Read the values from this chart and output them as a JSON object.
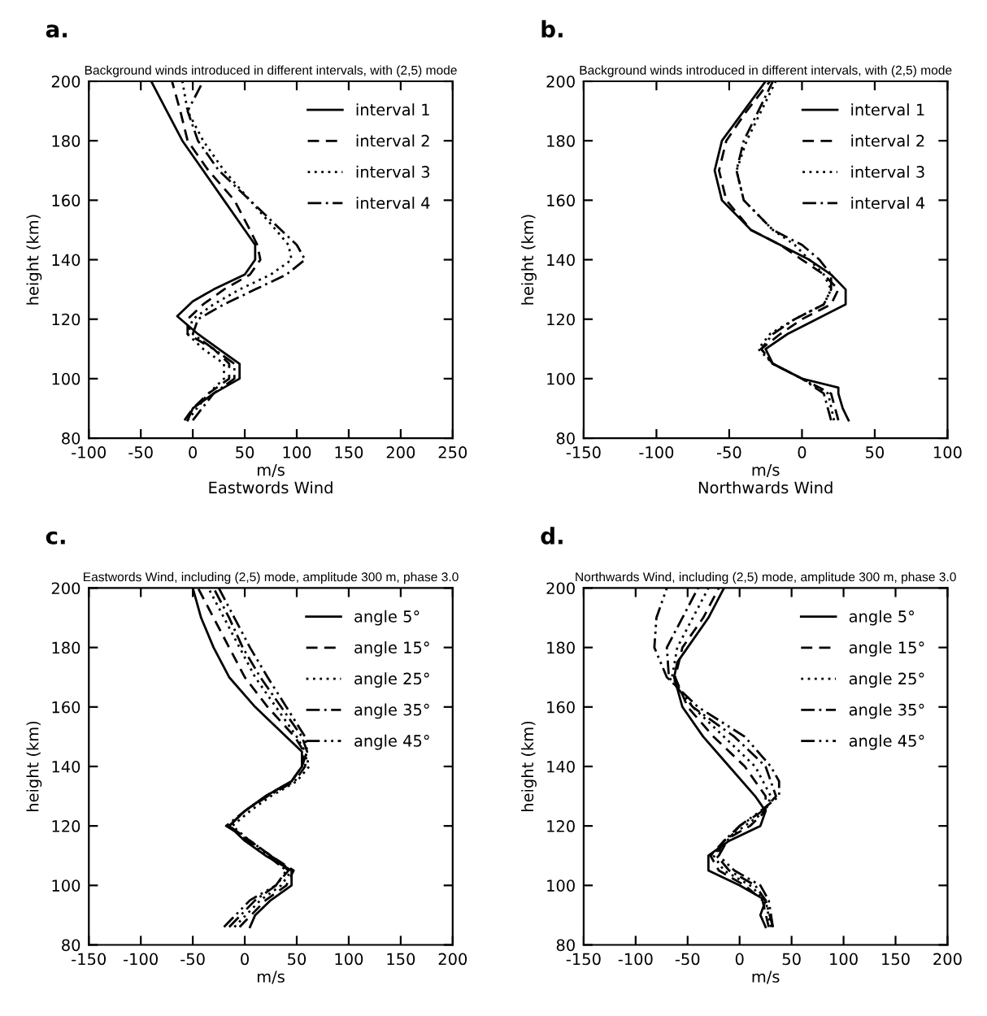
{
  "chart_data": [
    {
      "type": "line",
      "title": "Background winds introduced in different intervals, with (2,5) mode",
      "xlabel": "m/s\nEastwords Wind",
      "ylabel": "height (km)",
      "annotations": [
        "a."
      ],
      "xlim": [
        -100,
        250
      ],
      "xticks": [
        -100,
        -50,
        0,
        50,
        100,
        150,
        200,
        250
      ],
      "ylim": [
        80,
        200
      ],
      "yticks": [
        80,
        100,
        120,
        140,
        160,
        180,
        200
      ],
      "grid": false,
      "legend": "top right",
      "series": [
        {
          "name": "interval 1",
          "color": "#000000",
          "line_style": "solid",
          "x": [
            -5,
            0,
            20,
            45,
            45,
            25,
            5,
            -15,
            0,
            20,
            50,
            60,
            60,
            50,
            30,
            10,
            -10,
            -25,
            -40
          ],
          "values": [
            86,
            90,
            95,
            100,
            105,
            110,
            115,
            121,
            126,
            130,
            135,
            140,
            145,
            150,
            160,
            170,
            180,
            190,
            200
          ]
        },
        {
          "name": "interval 2",
          "color": "#000000",
          "line_style": "dashed",
          "x": [
            -8,
            0,
            15,
            35,
            35,
            20,
            -5,
            -5,
            10,
            30,
            55,
            65,
            62,
            55,
            40,
            15,
            -5,
            -12,
            -20
          ],
          "values": [
            86,
            90,
            95,
            100,
            105,
            110,
            115,
            120,
            125,
            130,
            135,
            140,
            145,
            150,
            160,
            170,
            180,
            190,
            200
          ]
        },
        {
          "name": "interval 3",
          "color": "#000000",
          "line_style": "dotted",
          "x": [
            -5,
            15,
            30,
            30,
            10,
            -5,
            0,
            20,
            45,
            75,
            95,
            92,
            80,
            55,
            30,
            10,
            -5,
            -10
          ],
          "values": [
            86,
            95,
            100,
            105,
            110,
            115,
            120,
            125,
            130,
            135,
            140,
            145,
            150,
            160,
            170,
            180,
            190,
            200
          ]
        },
        {
          "name": "interval 4",
          "color": "#000000",
          "line_style": "dashdot",
          "x": [
            0,
            20,
            40,
            40,
            20,
            0,
            5,
            30,
            60,
            90,
            108,
            100,
            85,
            55,
            25,
            5,
            -5,
            10
          ],
          "values": [
            86,
            95,
            100,
            105,
            110,
            115,
            120,
            125,
            130,
            135,
            140,
            145,
            150,
            160,
            170,
            180,
            190,
            200
          ]
        }
      ]
    },
    {
      "type": "line",
      "title": "Background winds introduced in different intervals, with (2,5) mode",
      "xlabel": "m/s\nNorthwards Wind",
      "ylabel": "height (km)",
      "annotations": [
        "b."
      ],
      "xlim": [
        -150,
        100
      ],
      "xticks": [
        -150,
        -100,
        -50,
        0,
        50,
        100
      ],
      "ylim": [
        80,
        200
      ],
      "yticks": [
        80,
        100,
        120,
        140,
        160,
        180,
        200
      ],
      "grid": false,
      "legend": "top right",
      "series": [
        {
          "name": "interval 1",
          "color": "#000000",
          "line_style": "solid",
          "x": [
            32,
            28,
            25,
            25,
            0,
            -20,
            -25,
            -10,
            10,
            30,
            30,
            20,
            5,
            -15,
            -35,
            -45,
            -55,
            -60,
            -55,
            -40,
            -25
          ],
          "values": [
            86,
            90,
            95,
            97,
            100,
            105,
            110,
            115,
            120,
            125,
            130,
            135,
            140,
            145,
            150,
            155,
            160,
            170,
            180,
            190,
            200
          ]
        },
        {
          "name": "interval 2",
          "color": "#000000",
          "line_style": "dashed",
          "x": [
            25,
            20,
            0,
            -20,
            -28,
            -15,
            0,
            20,
            25,
            15,
            0,
            -15,
            -35,
            -52,
            -57,
            -52,
            -38,
            -22
          ],
          "values": [
            86,
            95,
            100,
            105,
            110,
            115,
            120,
            125,
            130,
            135,
            140,
            145,
            150,
            160,
            170,
            180,
            190,
            200
          ]
        },
        {
          "name": "interval 3",
          "color": "#000000",
          "line_style": "dotted",
          "x": [
            22,
            18,
            0,
            -20,
            -30,
            -22,
            -5,
            15,
            20,
            15,
            5,
            -5,
            -20,
            -40,
            -45,
            -38,
            -28,
            -18
          ],
          "values": [
            86,
            95,
            100,
            105,
            110,
            115,
            120,
            125,
            130,
            135,
            140,
            145,
            150,
            160,
            170,
            180,
            190,
            200
          ]
        },
        {
          "name": "interval 4",
          "color": "#000000",
          "line_style": "dashdot",
          "x": [
            20,
            15,
            0,
            -20,
            -28,
            -20,
            -5,
            15,
            20,
            20,
            12,
            0,
            -20,
            -40,
            -45,
            -40,
            -30,
            -20
          ],
          "values": [
            86,
            95,
            100,
            105,
            110,
            115,
            120,
            125,
            130,
            135,
            140,
            145,
            150,
            160,
            170,
            180,
            190,
            200
          ]
        }
      ]
    },
    {
      "type": "line",
      "title": "Eastwords Wind, including (2,5) mode, amplitude 300 m, phase 3.0",
      "xlabel": "m/s",
      "ylabel": "height (km)",
      "annotations": [
        "c."
      ],
      "xlim": [
        -150,
        200
      ],
      "xticks": [
        -150,
        -100,
        -50,
        0,
        50,
        100,
        150,
        200
      ],
      "ylim": [
        80,
        200
      ],
      "yticks": [
        80,
        100,
        120,
        140,
        160,
        180,
        200
      ],
      "grid": false,
      "legend": "top right",
      "series": [
        {
          "name": "angle 5°",
          "color": "#000000",
          "line_style": "solid",
          "x": [
            5,
            10,
            25,
            45,
            45,
            20,
            0,
            -15,
            0,
            20,
            45,
            55,
            55,
            40,
            10,
            -15,
            -30,
            -42,
            -50
          ],
          "values": [
            86,
            90,
            95,
            100,
            105,
            110,
            115,
            120,
            125,
            130,
            135,
            140,
            145,
            150,
            160,
            170,
            180,
            190,
            200
          ]
        },
        {
          "name": "angle 15°",
          "color": "#000000",
          "line_style": "dashed",
          "x": [
            -5,
            20,
            40,
            47,
            25,
            5,
            -15,
            0,
            20,
            45,
            55,
            57,
            48,
            22,
            0,
            -15,
            -30,
            -45
          ],
          "values": [
            86,
            95,
            100,
            105,
            110,
            115,
            120,
            125,
            130,
            135,
            140,
            145,
            150,
            160,
            170,
            180,
            190,
            200
          ]
        },
        {
          "name": "angle 25°",
          "color": "#000000",
          "line_style": "dotted",
          "x": [
            -10,
            15,
            35,
            45,
            25,
            5,
            -12,
            5,
            25,
            50,
            62,
            58,
            50,
            30,
            10,
            -5,
            -20,
            -35
          ],
          "values": [
            86,
            95,
            100,
            105,
            110,
            115,
            120,
            125,
            130,
            135,
            140,
            145,
            150,
            160,
            170,
            180,
            190,
            200
          ]
        },
        {
          "name": "angle 35°",
          "color": "#000000",
          "line_style": "dashdot",
          "x": [
            -15,
            10,
            30,
            42,
            25,
            5,
            -18,
            0,
            22,
            48,
            58,
            60,
            55,
            35,
            15,
            -2,
            -15,
            -30
          ],
          "values": [
            86,
            95,
            100,
            105,
            110,
            115,
            120,
            125,
            130,
            135,
            140,
            145,
            150,
            160,
            170,
            180,
            190,
            200
          ]
        },
        {
          "name": "angle 45°",
          "color": "#000000",
          "line_style": "dashdotdot",
          "x": [
            -20,
            5,
            30,
            40,
            22,
            2,
            -15,
            0,
            20,
            45,
            55,
            60,
            58,
            40,
            22,
            5,
            -10,
            -25
          ],
          "values": [
            86,
            95,
            100,
            105,
            110,
            115,
            120,
            125,
            130,
            135,
            140,
            145,
            150,
            160,
            170,
            180,
            190,
            200
          ]
        }
      ]
    },
    {
      "type": "line",
      "title": "Northwards Wind, including (2,5) mode, amplitude 300 m, phase 3.0",
      "xlabel": "m/s",
      "ylabel": "height (km)",
      "annotations": [
        "d."
      ],
      "xlim": [
        -150,
        200
      ],
      "xticks": [
        -150,
        -100,
        -50,
        0,
        50,
        100,
        150,
        200
      ],
      "ylim": [
        80,
        200
      ],
      "yticks": [
        80,
        100,
        120,
        140,
        160,
        180,
        200
      ],
      "grid": false,
      "legend": "top right",
      "series": [
        {
          "name": "angle 5°",
          "color": "#000000",
          "line_style": "solid",
          "x": [
            25,
            20,
            25,
            0,
            -30,
            -30,
            -10,
            20,
            25,
            15,
            -10,
            -35,
            -55,
            -63,
            -60,
            -50,
            -30,
            -15
          ],
          "values": [
            86,
            90,
            95,
            100,
            105,
            110,
            115,
            120,
            125,
            130,
            140,
            150,
            160,
            170,
            175,
            180,
            190,
            200
          ]
        },
        {
          "name": "angle 15°",
          "color": "#000000",
          "line_style": "dashed",
          "x": [
            28,
            22,
            5,
            -20,
            -28,
            -15,
            10,
            25,
            25,
            5,
            -25,
            -50,
            -62,
            -55,
            -35,
            -20
          ],
          "values": [
            86,
            95,
            100,
            105,
            110,
            115,
            120,
            125,
            130,
            140,
            150,
            160,
            170,
            180,
            190,
            200
          ]
        },
        {
          "name": "angle 25°",
          "color": "#000000",
          "line_style": "dotted",
          "x": [
            30,
            25,
            10,
            -15,
            -25,
            -15,
            5,
            25,
            30,
            15,
            -15,
            -45,
            -65,
            -60,
            -45,
            -30
          ],
          "values": [
            86,
            95,
            100,
            105,
            110,
            115,
            120,
            125,
            130,
            140,
            150,
            160,
            170,
            180,
            190,
            200
          ]
        },
        {
          "name": "angle 35°",
          "color": "#000000",
          "line_style": "dashdot",
          "x": [
            32,
            25,
            15,
            -10,
            -22,
            -15,
            0,
            22,
            35,
            25,
            -5,
            -45,
            -68,
            -70,
            -55,
            -40
          ],
          "values": [
            86,
            95,
            100,
            105,
            110,
            115,
            120,
            125,
            130,
            140,
            150,
            160,
            170,
            180,
            190,
            200
          ]
        },
        {
          "name": "angle 45°",
          "color": "#000000",
          "line_style": "dashdotdot",
          "x": [
            32,
            28,
            20,
            -5,
            -20,
            -12,
            0,
            20,
            38,
            38,
            30,
            5,
            -40,
            -70,
            -82,
            -80,
            -70
          ],
          "values": [
            86,
            95,
            100,
            105,
            110,
            115,
            120,
            125,
            130,
            135,
            140,
            150,
            160,
            170,
            180,
            190,
            200
          ]
        }
      ]
    }
  ]
}
